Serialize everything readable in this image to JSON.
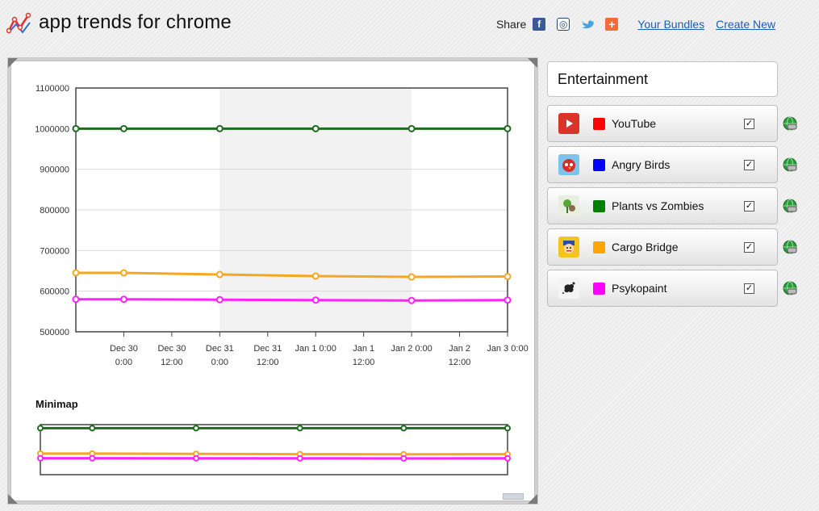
{
  "header": {
    "title": "app trends for chrome",
    "share_label": "Share",
    "links": [
      "Your Bundles",
      "Create New"
    ],
    "social_icons": [
      "facebook-icon",
      "digg-icon",
      "twitter-icon",
      "addthis-plus-icon"
    ]
  },
  "panel": {
    "category": "Entertainment",
    "apps": [
      {
        "name": "YouTube",
        "color": "#ff0000",
        "icon": "youtube-icon",
        "checked": true
      },
      {
        "name": "Angry Birds",
        "color": "#0000ff",
        "icon": "angry-birds-icon",
        "checked": true
      },
      {
        "name": "Plants vs Zombies",
        "color": "#008000",
        "icon": "plants-vs-zombies-icon",
        "checked": true
      },
      {
        "name": "Cargo Bridge",
        "color": "#ffa500",
        "icon": "cargo-bridge-icon",
        "checked": true
      },
      {
        "name": "Psykopaint",
        "color": "#ff00ff",
        "icon": "psykopaint-icon",
        "checked": true
      }
    ]
  },
  "minimap_title": "Minimap",
  "chart_data": {
    "type": "line",
    "ylim": [
      500000,
      1100000
    ],
    "yticks": [
      500000,
      600000,
      700000,
      800000,
      900000,
      1000000,
      1100000
    ],
    "ytick_labels": [
      "500000",
      "600000",
      "700000",
      "800000",
      "900000",
      "1000000",
      "1100000"
    ],
    "xlim": [
      0,
      108
    ],
    "x_ticks": [
      {
        "x": 12,
        "label": [
          "Dec 30",
          "0:00"
        ]
      },
      {
        "x": 24,
        "label": [
          "Dec 30",
          "12:00"
        ]
      },
      {
        "x": 36,
        "label": [
          "Dec 31",
          "0:00"
        ]
      },
      {
        "x": 48,
        "label": [
          "Dec 31",
          "12:00"
        ]
      },
      {
        "x": 60,
        "label": [
          "Jan 1 0:00"
        ]
      },
      {
        "x": 72,
        "label": [
          "Jan 1",
          "12:00"
        ]
      },
      {
        "x": 84,
        "label": [
          "Jan 2 0:00"
        ]
      },
      {
        "x": 96,
        "label": [
          "Jan 2",
          "12:00"
        ]
      },
      {
        "x": 108,
        "label": [
          "Jan 3 0:00"
        ]
      }
    ],
    "shaded_band": [
      36,
      84
    ],
    "grid": true,
    "series": [
      {
        "name": "Plants vs Zombies",
        "color": "#1e6b1e",
        "x": [
          0,
          12,
          36,
          60,
          84,
          108
        ],
        "values": [
          1000000,
          1000000,
          1000000,
          1000000,
          1000000,
          1000000
        ]
      },
      {
        "name": "Cargo Bridge",
        "color": "#f5a623",
        "x": [
          0,
          12,
          36,
          60,
          84,
          108
        ],
        "values": [
          645000,
          645000,
          641000,
          637000,
          635000,
          636000
        ]
      },
      {
        "name": "Psykopaint",
        "color": "#ff22ff",
        "x": [
          0,
          12,
          36,
          60,
          84,
          108
        ],
        "values": [
          580000,
          580000,
          579000,
          578000,
          577000,
          578000
        ]
      }
    ]
  }
}
